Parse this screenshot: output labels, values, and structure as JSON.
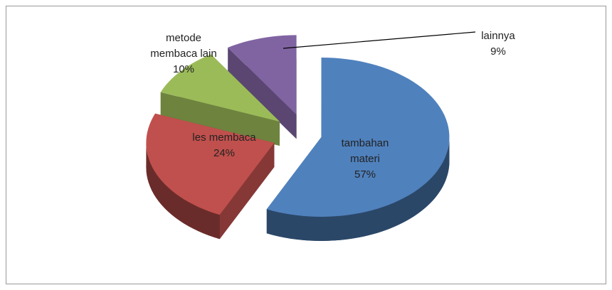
{
  "chart_data": {
    "type": "pie3d",
    "categories": [
      "tambahan materi",
      "les membaca",
      "metode membaca lain",
      "lainnya"
    ],
    "values": [
      57,
      24,
      10,
      9
    ],
    "value_labels": [
      "57%",
      "24%",
      "10%",
      "9%"
    ],
    "colors": [
      "#4f81bd",
      "#c0504d",
      "#9bbb59",
      "#8064a2"
    ]
  }
}
